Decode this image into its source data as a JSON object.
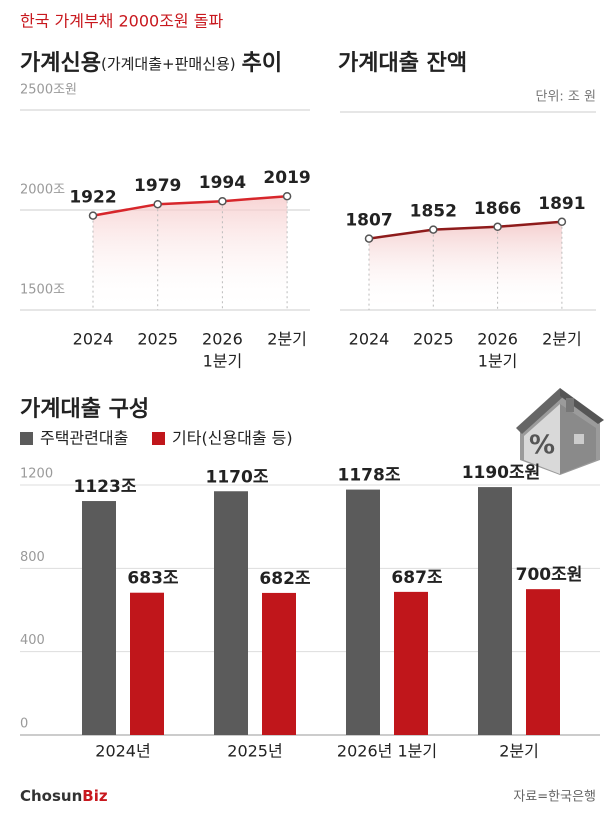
{
  "header": {
    "title": "한국 가계부채 2000조원 돌파"
  },
  "chart_data": [
    {
      "type": "line",
      "title": "가계신용",
      "subtitle": "(가계대출+판매신용)",
      "title_suffix": "추이",
      "categories": [
        "2024",
        "2025",
        "2026",
        "2분기"
      ],
      "category_sublabels": [
        null,
        null,
        "1분기",
        null
      ],
      "values": [
        1922,
        1979,
        1994,
        2019
      ],
      "color": "#d7262b",
      "ylim": [
        1500,
        2500
      ],
      "yticks": [
        {
          "value": 2500,
          "label": "2500조원"
        },
        {
          "value": 2000,
          "label": "2000조"
        },
        {
          "value": 1500,
          "label": "1500조"
        }
      ],
      "grid": true
    },
    {
      "type": "line",
      "title": "가계대출 잔액",
      "unit": "단위: 조 원",
      "categories": [
        "2024",
        "2025",
        "2026",
        "2분기"
      ],
      "category_sublabels": [
        null,
        null,
        "1분기",
        null
      ],
      "values": [
        1807,
        1852,
        1866,
        1891
      ],
      "color": "#8e1b1b",
      "ylim": [
        1500,
        2500
      ]
    },
    {
      "type": "bar",
      "title": "가계대출 구성",
      "categories": [
        "2024년",
        "2025년",
        "2026년 1분기",
        "2분기"
      ],
      "series": [
        {
          "name": "주택관련대출",
          "color": "#5b5b5b",
          "values": [
            1123,
            1170,
            1178,
            1190
          ],
          "value_labels": [
            "1123조",
            "1170조",
            "1178조",
            "1190조원"
          ]
        },
        {
          "name": "기타(신용대출 등)",
          "color": "#c0161b",
          "values": [
            683,
            682,
            687,
            700
          ],
          "value_labels": [
            "683조",
            "682조",
            "687조",
            "700조원"
          ]
        }
      ],
      "ylim": [
        0,
        1200
      ],
      "yticks": [
        0,
        400,
        800,
        1200
      ],
      "grid": true
    }
  ],
  "footer": {
    "logo": "Chosun",
    "logo_accent": "Biz",
    "source": "자료=한국은행"
  }
}
